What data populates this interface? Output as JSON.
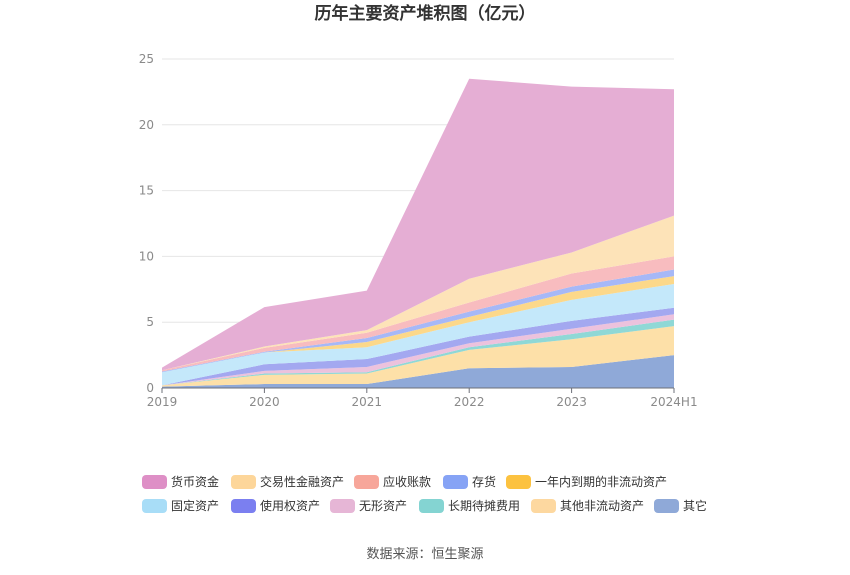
{
  "chart_data": {
    "type": "area",
    "stacked": true,
    "title": "历年主要资产堆积图（亿元）",
    "categories": [
      "2019",
      "2020",
      "2021",
      "2022",
      "2023",
      "2024H1"
    ],
    "ylim": [
      0,
      25
    ],
    "yticks": [
      "0",
      "5",
      "10",
      "15",
      "20",
      "25"
    ],
    "grid": true,
    "legend_position": "bottom",
    "series": [
      {
        "name": "其它",
        "color": "#8fa9d8",
        "values": [
          0.1,
          0.3,
          0.3,
          1.5,
          1.6,
          2.5
        ]
      },
      {
        "name": "其他非流动资产",
        "color": "#fde0a8",
        "values": [
          0.1,
          0.7,
          0.8,
          1.4,
          2.1,
          2.2
        ]
      },
      {
        "name": "长期待摊费用",
        "color": "#8fd8d6",
        "values": [
          0.0,
          0.1,
          0.1,
          0.2,
          0.4,
          0.5
        ]
      },
      {
        "name": "无形资产",
        "color": "#ecc2dd",
        "values": [
          0.0,
          0.2,
          0.4,
          0.3,
          0.4,
          0.4
        ]
      },
      {
        "name": "使用权资产",
        "color": "#a3a8f0",
        "values": [
          0.0,
          0.5,
          0.6,
          0.5,
          0.6,
          0.5
        ]
      },
      {
        "name": "固定资产",
        "color": "#c4e8fa",
        "values": [
          1.0,
          0.9,
          0.9,
          1.1,
          1.6,
          1.8
        ]
      },
      {
        "name": "一年内到期的非流动资产",
        "color": "#fcd88a",
        "values": [
          0.0,
          0.0,
          0.4,
          0.4,
          0.6,
          0.6
        ]
      },
      {
        "name": "存货",
        "color": "#a6b8f7",
        "values": [
          0.05,
          0.05,
          0.3,
          0.4,
          0.4,
          0.5
        ]
      },
      {
        "name": "应收账款",
        "color": "#f8bcbf",
        "values": [
          0.1,
          0.3,
          0.4,
          0.7,
          1.0,
          1.0
        ]
      },
      {
        "name": "交易性金融资产",
        "color": "#fde3b8",
        "values": [
          0.0,
          0.1,
          0.2,
          1.8,
          1.6,
          3.1
        ]
      },
      {
        "name": "货币资金",
        "color": "#e5aed4",
        "values": [
          0.2,
          3.0,
          3.0,
          15.2,
          12.6,
          9.6
        ]
      }
    ],
    "legend": [
      {
        "name": "货币资金",
        "color": "#de8fc6"
      },
      {
        "name": "交易性金融资产",
        "color": "#fdd69a"
      },
      {
        "name": "应收账款",
        "color": "#f7a69a"
      },
      {
        "name": "存货",
        "color": "#86a3f5"
      },
      {
        "name": "一年内到期的非流动资产",
        "color": "#fcc240"
      },
      {
        "name": "固定资产",
        "color": "#a8ddf7"
      },
      {
        "name": "使用权资产",
        "color": "#7b7ff0"
      },
      {
        "name": "无形资产",
        "color": "#e6b6d6"
      },
      {
        "name": "长期待摊费用",
        "color": "#84d4d2"
      },
      {
        "name": "其他非流动资产",
        "color": "#fdd8a0"
      },
      {
        "name": "其它",
        "color": "#8fa9d8"
      }
    ]
  },
  "footer": {
    "source": "数据来源：恒生聚源"
  }
}
